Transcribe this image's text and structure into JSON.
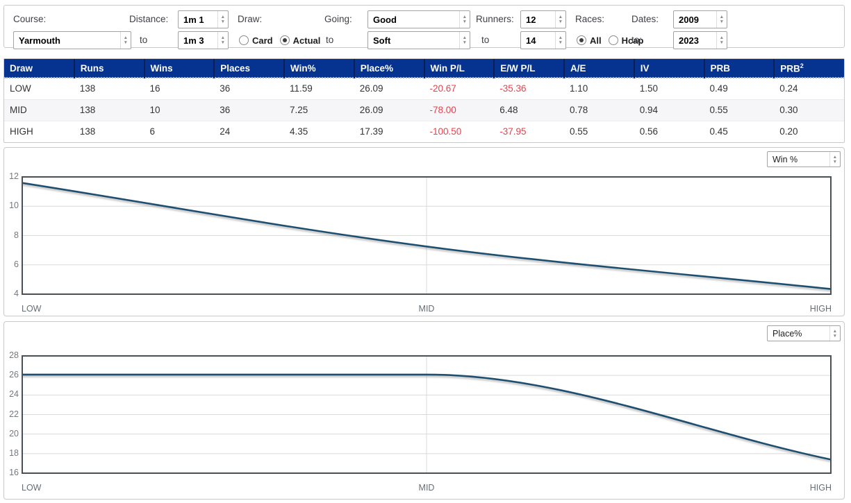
{
  "colors": {
    "header_bg": "#05338f",
    "negative_text": "#e8414d",
    "chart_line": "#1f506f",
    "panel_border": "#c9c9c9"
  },
  "filters": {
    "course": {
      "label": "Course:",
      "value": "Yarmouth"
    },
    "distance": {
      "label": "Distance:",
      "from": "1m 1",
      "to_label": "to",
      "to": "1m 3"
    },
    "draw": {
      "label": "Draw:",
      "options": [
        {
          "label": "Card",
          "checked": false
        },
        {
          "label": "Actual",
          "checked": true
        }
      ]
    },
    "going": {
      "label": "Going:",
      "from": "Good",
      "to_label": "to",
      "to": "Soft"
    },
    "runners": {
      "label": "Runners:",
      "from": "12",
      "to_label": "to",
      "to": "14"
    },
    "races": {
      "label": "Races:",
      "options": [
        {
          "label": "All",
          "checked": true
        },
        {
          "label": "Hcap",
          "checked": false
        }
      ]
    },
    "dates": {
      "label": "Dates:",
      "from": "2009",
      "to_label": "to:",
      "to": "2023"
    }
  },
  "table": {
    "columns": [
      {
        "label": "Draw"
      },
      {
        "label": "Runs"
      },
      {
        "label": "Wins"
      },
      {
        "label": "Places"
      },
      {
        "label": "Win%"
      },
      {
        "label": "Place%"
      },
      {
        "label": "Win P/L"
      },
      {
        "label": "E/W P/L"
      },
      {
        "label": "A/E"
      },
      {
        "label": "IV"
      },
      {
        "label": "PRB"
      },
      {
        "label": "PRB",
        "sup": "2"
      }
    ],
    "rows": [
      [
        "LOW",
        "138",
        "16",
        "36",
        "11.59",
        "26.09",
        "-20.67",
        "-35.36",
        "1.10",
        "1.50",
        "0.49",
        "0.24"
      ],
      [
        "MID",
        "138",
        "10",
        "36",
        "7.25",
        "26.09",
        "-78.00",
        "6.48",
        "0.78",
        "0.94",
        "0.55",
        "0.30"
      ],
      [
        "HIGH",
        "138",
        "6",
        "24",
        "4.35",
        "17.39",
        "-100.50",
        "-37.95",
        "0.55",
        "0.56",
        "0.45",
        "0.20"
      ]
    ]
  },
  "chart_data": [
    {
      "type": "line",
      "selector_value": "Win %",
      "categories": [
        "LOW",
        "MID",
        "HIGH"
      ],
      "values": [
        11.59,
        7.25,
        4.35
      ],
      "ylim": [
        4,
        12
      ],
      "yticks": [
        4,
        6,
        8,
        10,
        12
      ],
      "grid": true,
      "legend": "none",
      "line_color": "#1f506f"
    },
    {
      "type": "line",
      "selector_value": "Place%",
      "categories": [
        "LOW",
        "MID",
        "HIGH"
      ],
      "values": [
        26.09,
        26.09,
        17.39
      ],
      "ylim": [
        16,
        28
      ],
      "yticks": [
        16,
        18,
        20,
        22,
        24,
        26,
        28
      ],
      "grid": true,
      "legend": "none",
      "line_color": "#1f506f"
    }
  ]
}
